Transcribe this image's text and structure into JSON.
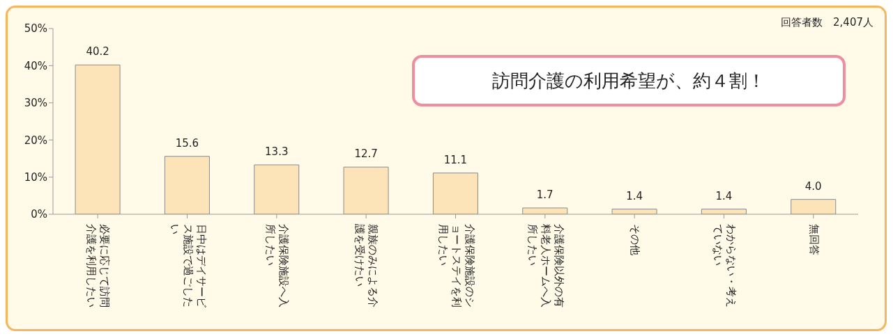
{
  "chart_data": {
    "type": "bar",
    "categories": [
      "必要に応じて訪問介護を利用したい",
      "日中はデイサービス施設で過ごしたい",
      "介護保険施設へ入所したい",
      "親族のみによる介護を受けたい",
      "介護保険施設のショートステイを利用したい",
      "介護保険以外の有料老人ホームへ入所したい",
      "その他",
      "わからない・考えていない",
      "無回答"
    ],
    "values": [
      40.2,
      15.6,
      13.3,
      12.7,
      11.1,
      1.7,
      1.4,
      1.4,
      4.0
    ],
    "value_labels": [
      "40.2",
      "15.6",
      "13.3",
      "12.7",
      "11.1",
      "1.7",
      "1.4",
      "1.4",
      "4.0"
    ],
    "color": "#fde3b8",
    "ylim": [
      0,
      50
    ],
    "yticks": [
      {
        "value": 0,
        "label": "0%"
      },
      {
        "value": 10,
        "label": "10%"
      },
      {
        "value": 20,
        "label": "20%"
      },
      {
        "value": 30,
        "label": "30%"
      },
      {
        "value": 40,
        "label": "40%"
      },
      {
        "value": 50,
        "label": "50%"
      }
    ],
    "grid": false,
    "legend": false,
    "annotations": [
      "回答者数　2,407人",
      "訪問介護の利用希望が、約４割！"
    ]
  }
}
